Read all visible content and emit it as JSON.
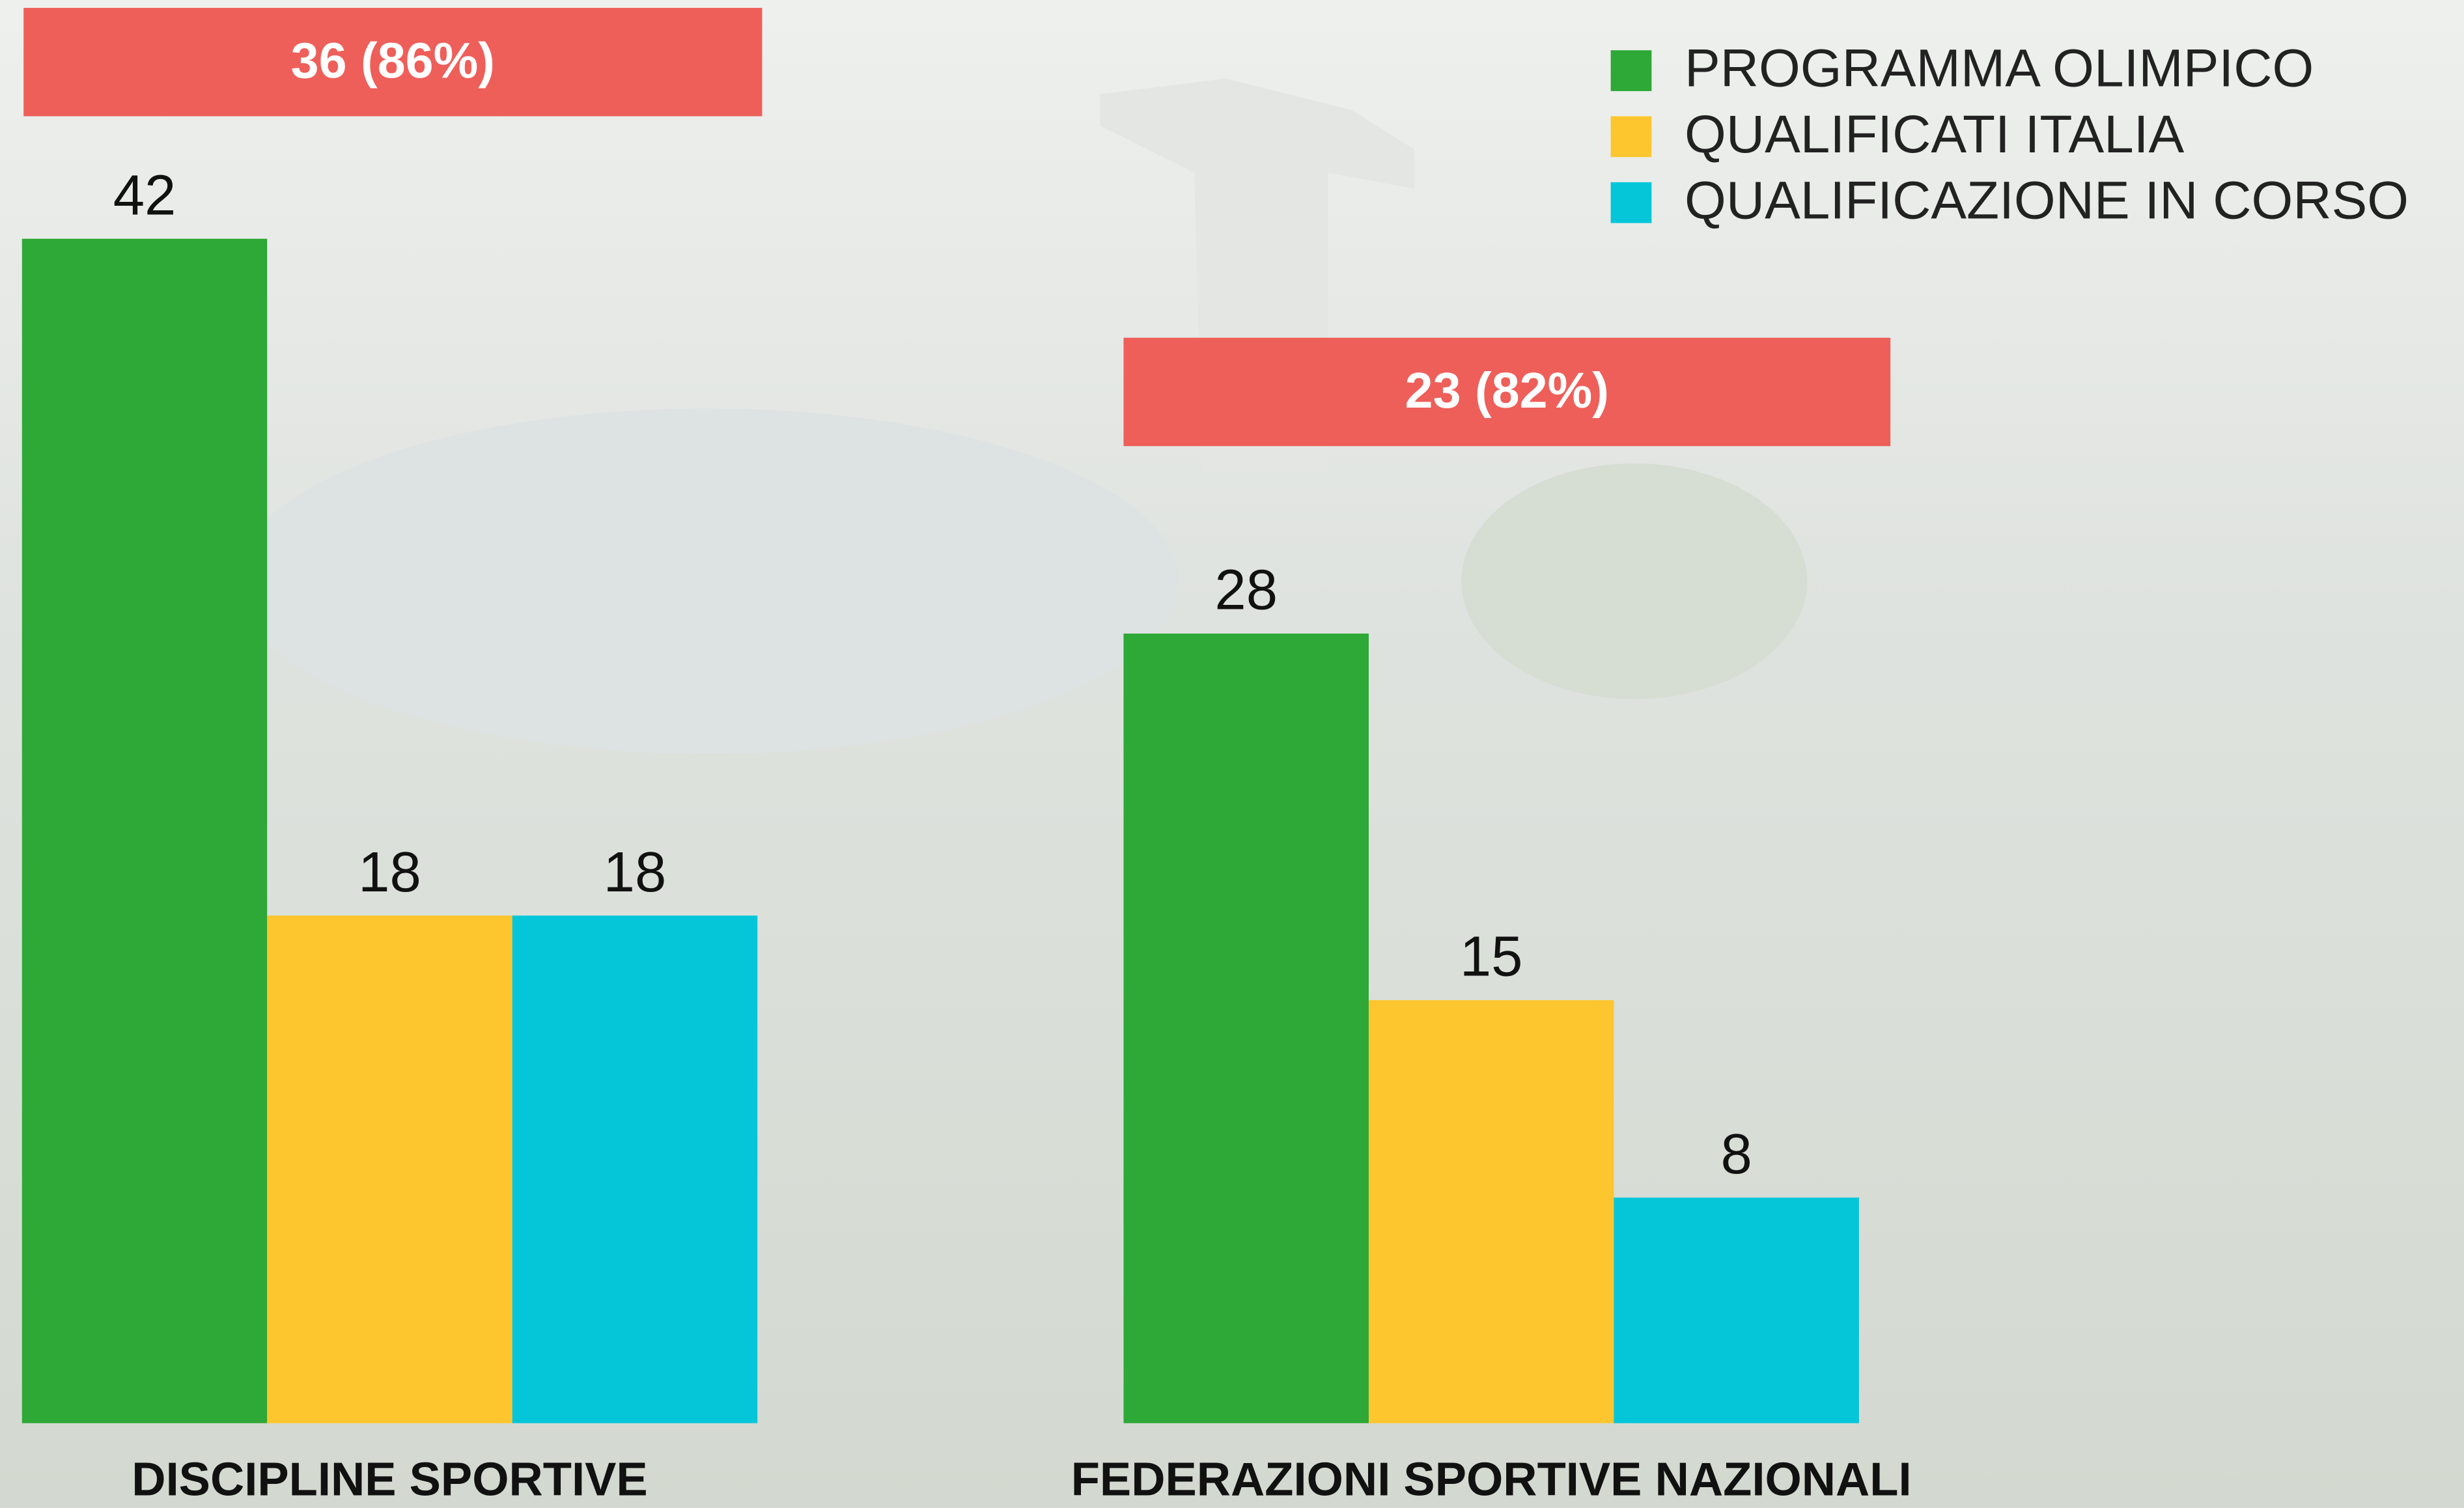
{
  "chart_data": {
    "type": "bar",
    "categories": [
      "DISCIPLINE SPORTIVE",
      "FEDERAZIONI SPORTIVE NAZIONALI"
    ],
    "series": [
      {
        "name": "PROGRAMMA OLIMPICO",
        "color": "#2ea836",
        "values": [
          42,
          28
        ]
      },
      {
        "name": "QUALIFICATI ITALIA",
        "color": "#fdc62e",
        "values": [
          18,
          15
        ]
      },
      {
        "name": "QUALIFICAZIONE IN CORSO",
        "color": "#05c6d9",
        "values": [
          18,
          8
        ]
      }
    ],
    "annotations": [
      "36 (86%)",
      "23 (82%)"
    ],
    "annotation_color": "#ee5f5a",
    "ylim": [
      0,
      42
    ],
    "legend": "top-right"
  }
}
